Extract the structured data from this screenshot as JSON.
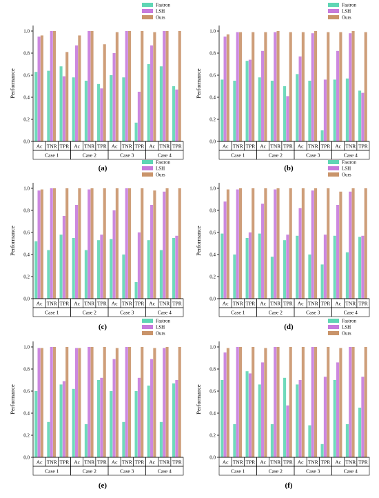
{
  "legend": {
    "entries": [
      {
        "name": "Fastron",
        "color": "#5fd6b4"
      },
      {
        "name": "LSH",
        "color": "#c77bdc"
      },
      {
        "name": "Ours",
        "color": "#c9946a"
      }
    ],
    "placement": "top-right"
  },
  "chart_data": [
    {
      "type": "bar",
      "panel_label": "(a)",
      "categories": [
        "Ac",
        "TNR",
        "TPR",
        "Ac",
        "TNR",
        "TPR",
        "Ac",
        "TNR",
        "TPR",
        "Ac",
        "TNR",
        "TPR"
      ],
      "groups": [
        "Case 1",
        "Case 2",
        "Case 3",
        "Case 4"
      ],
      "ylabel": "Performance",
      "ylim": [
        0,
        1.05
      ],
      "yticks": [
        "0.0",
        "0.2",
        "0.4",
        "0.6",
        "0.8",
        "1.0"
      ],
      "series": [
        {
          "name": "Fastron",
          "values": [
            0.63,
            0.64,
            0.68,
            0.58,
            0.55,
            0.52,
            0.6,
            0.58,
            0.17,
            0.7,
            0.68,
            0.5
          ]
        },
        {
          "name": "LSH",
          "values": [
            0.95,
            1.0,
            0.59,
            0.87,
            1.0,
            0.48,
            0.8,
            1.0,
            0.45,
            0.87,
            1.0,
            0.47
          ]
        },
        {
          "name": "Ours",
          "values": [
            0.96,
            1.0,
            0.81,
            0.96,
            1.0,
            0.88,
            0.99,
            1.0,
            1.0,
            0.99,
            1.0,
            1.0
          ]
        }
      ]
    },
    {
      "type": "bar",
      "panel_label": "(b)",
      "categories": [
        "Ac",
        "TNR",
        "TPR",
        "Ac",
        "TNR",
        "TPR",
        "Ac",
        "TNR",
        "TPR",
        "Ac",
        "TNR",
        "TPR"
      ],
      "groups": [
        "Case 1",
        "Case 2",
        "Case 3",
        "Case 4"
      ],
      "ylabel": "Performance",
      "ylim": [
        0,
        1.05
      ],
      "yticks": [
        "0.0",
        "0.2",
        "0.4",
        "0.6",
        "0.8",
        "1.0"
      ],
      "series": [
        {
          "name": "Fastron",
          "values": [
            0.56,
            0.55,
            0.73,
            0.58,
            0.55,
            0.5,
            0.61,
            0.55,
            0.1,
            0.56,
            0.57,
            0.46
          ]
        },
        {
          "name": "LSH",
          "values": [
            0.95,
            0.99,
            0.74,
            0.82,
            0.99,
            0.41,
            0.77,
            0.98,
            0.56,
            0.82,
            0.98,
            0.44
          ]
        },
        {
          "name": "Ours",
          "values": [
            0.97,
            0.99,
            0.99,
            0.99,
            1.0,
            0.99,
            0.99,
            1.0,
            0.99,
            0.99,
            1.0,
            0.99
          ]
        }
      ]
    },
    {
      "type": "bar",
      "panel_label": "(c)",
      "categories": [
        "Ac",
        "TNR",
        "TPR",
        "Ac",
        "TNR",
        "TPR",
        "Ac",
        "TNR",
        "TPR",
        "Ac",
        "TNR",
        "TPR"
      ],
      "groups": [
        "Case 1",
        "Case 2",
        "Case 3",
        "Case 4"
      ],
      "ylabel": "Performance",
      "ylim": [
        0,
        1.05
      ],
      "yticks": [
        "0.0",
        "0.2",
        "0.4",
        "0.6",
        "0.8",
        "1.0"
      ],
      "series": [
        {
          "name": "Fastron",
          "values": [
            0.52,
            0.44,
            0.58,
            0.55,
            0.44,
            0.53,
            0.54,
            0.4,
            0.15,
            0.53,
            0.44,
            0.55
          ]
        },
        {
          "name": "LSH",
          "values": [
            0.98,
            1.0,
            0.75,
            0.85,
            0.99,
            0.58,
            0.8,
            1.0,
            0.6,
            0.85,
            0.97,
            0.57
          ]
        },
        {
          "name": "Ours",
          "values": [
            0.99,
            1.0,
            1.0,
            1.0,
            1.0,
            1.0,
            1.0,
            1.0,
            1.0,
            0.98,
            1.0,
            1.0
          ]
        }
      ]
    },
    {
      "type": "bar",
      "panel_label": "(d)",
      "categories": [
        "Ac",
        "TNR",
        "TPR",
        "Ac",
        "TNR",
        "TPR",
        "Ac",
        "TNR",
        "TPR",
        "Ac",
        "TNR",
        "TPR"
      ],
      "groups": [
        "Case 1",
        "Case 2",
        "Case 3",
        "Case 4"
      ],
      "ylabel": "Performance",
      "ylim": [
        0,
        1.05
      ],
      "yticks": [
        "0.0",
        "0.2",
        "0.4",
        "0.6",
        "0.8",
        "1.0"
      ],
      "series": [
        {
          "name": "Fastron",
          "values": [
            0.59,
            0.4,
            0.55,
            0.59,
            0.38,
            0.53,
            0.57,
            0.4,
            0.31,
            0.57,
            0.42,
            0.56
          ]
        },
        {
          "name": "LSH",
          "values": [
            0.88,
            0.99,
            0.6,
            0.86,
            0.99,
            0.58,
            0.82,
            0.98,
            0.58,
            0.85,
            0.97,
            0.57
          ]
        },
        {
          "name": "Ours",
          "values": [
            0.99,
            1.0,
            1.0,
            1.0,
            1.0,
            1.0,
            1.0,
            1.0,
            1.0,
            0.97,
            1.0,
            1.0
          ]
        }
      ]
    },
    {
      "type": "bar",
      "panel_label": "(e)",
      "categories": [
        "Ac",
        "TNR",
        "TPR",
        "Ac",
        "TNR",
        "TPR",
        "Ac",
        "TNR",
        "TPR",
        "Ac",
        "TNR",
        "TPR"
      ],
      "groups": [
        "Case 1",
        "Case 2",
        "Case 3",
        "Case 4"
      ],
      "ylabel": "Performance",
      "ylim": [
        0,
        1.05
      ],
      "yticks": [
        "0.0",
        "0.2",
        "0.4",
        "0.6",
        "0.8",
        "1.0"
      ],
      "series": [
        {
          "name": "Fastron",
          "values": [
            0.6,
            0.32,
            0.66,
            0.62,
            0.3,
            0.7,
            0.6,
            0.32,
            0.6,
            0.65,
            0.32,
            0.67
          ]
        },
        {
          "name": "LSH",
          "values": [
            0.99,
            1.0,
            0.69,
            0.99,
            1.0,
            0.72,
            0.89,
            1.0,
            0.72,
            0.89,
            0.99,
            0.7
          ]
        },
        {
          "name": "Ours",
          "values": [
            0.99,
            1.0,
            1.0,
            0.99,
            1.0,
            1.0,
            0.99,
            1.0,
            1.0,
            0.99,
            1.0,
            1.0
          ]
        }
      ]
    },
    {
      "type": "bar",
      "panel_label": "(f)",
      "categories": [
        "Ac",
        "TNR",
        "TPR",
        "Ac",
        "TNR",
        "TPR",
        "Ac",
        "TNR",
        "TPR",
        "Ac",
        "TNR",
        "TPR"
      ],
      "groups": [
        "Case 1",
        "Case 2",
        "Case 3",
        "Case 4"
      ],
      "ylabel": "Performance",
      "ylim": [
        0,
        1.05
      ],
      "yticks": [
        "0.0",
        "0.2",
        "0.4",
        "0.6",
        "0.8",
        "1.0"
      ],
      "series": [
        {
          "name": "Fastron",
          "values": [
            0.7,
            0.3,
            0.78,
            0.66,
            0.3,
            0.72,
            0.66,
            0.29,
            0.12,
            0.7,
            0.3,
            0.45
          ]
        },
        {
          "name": "LSH",
          "values": [
            0.95,
            1.0,
            0.76,
            0.86,
            1.0,
            0.47,
            0.7,
            1.0,
            0.73,
            0.86,
            1.0,
            0.73
          ]
        },
        {
          "name": "Ours",
          "values": [
            0.99,
            1.0,
            1.0,
            0.99,
            1.0,
            1.0,
            1.0,
            1.0,
            1.0,
            0.99,
            1.0,
            1.0
          ]
        }
      ]
    }
  ]
}
